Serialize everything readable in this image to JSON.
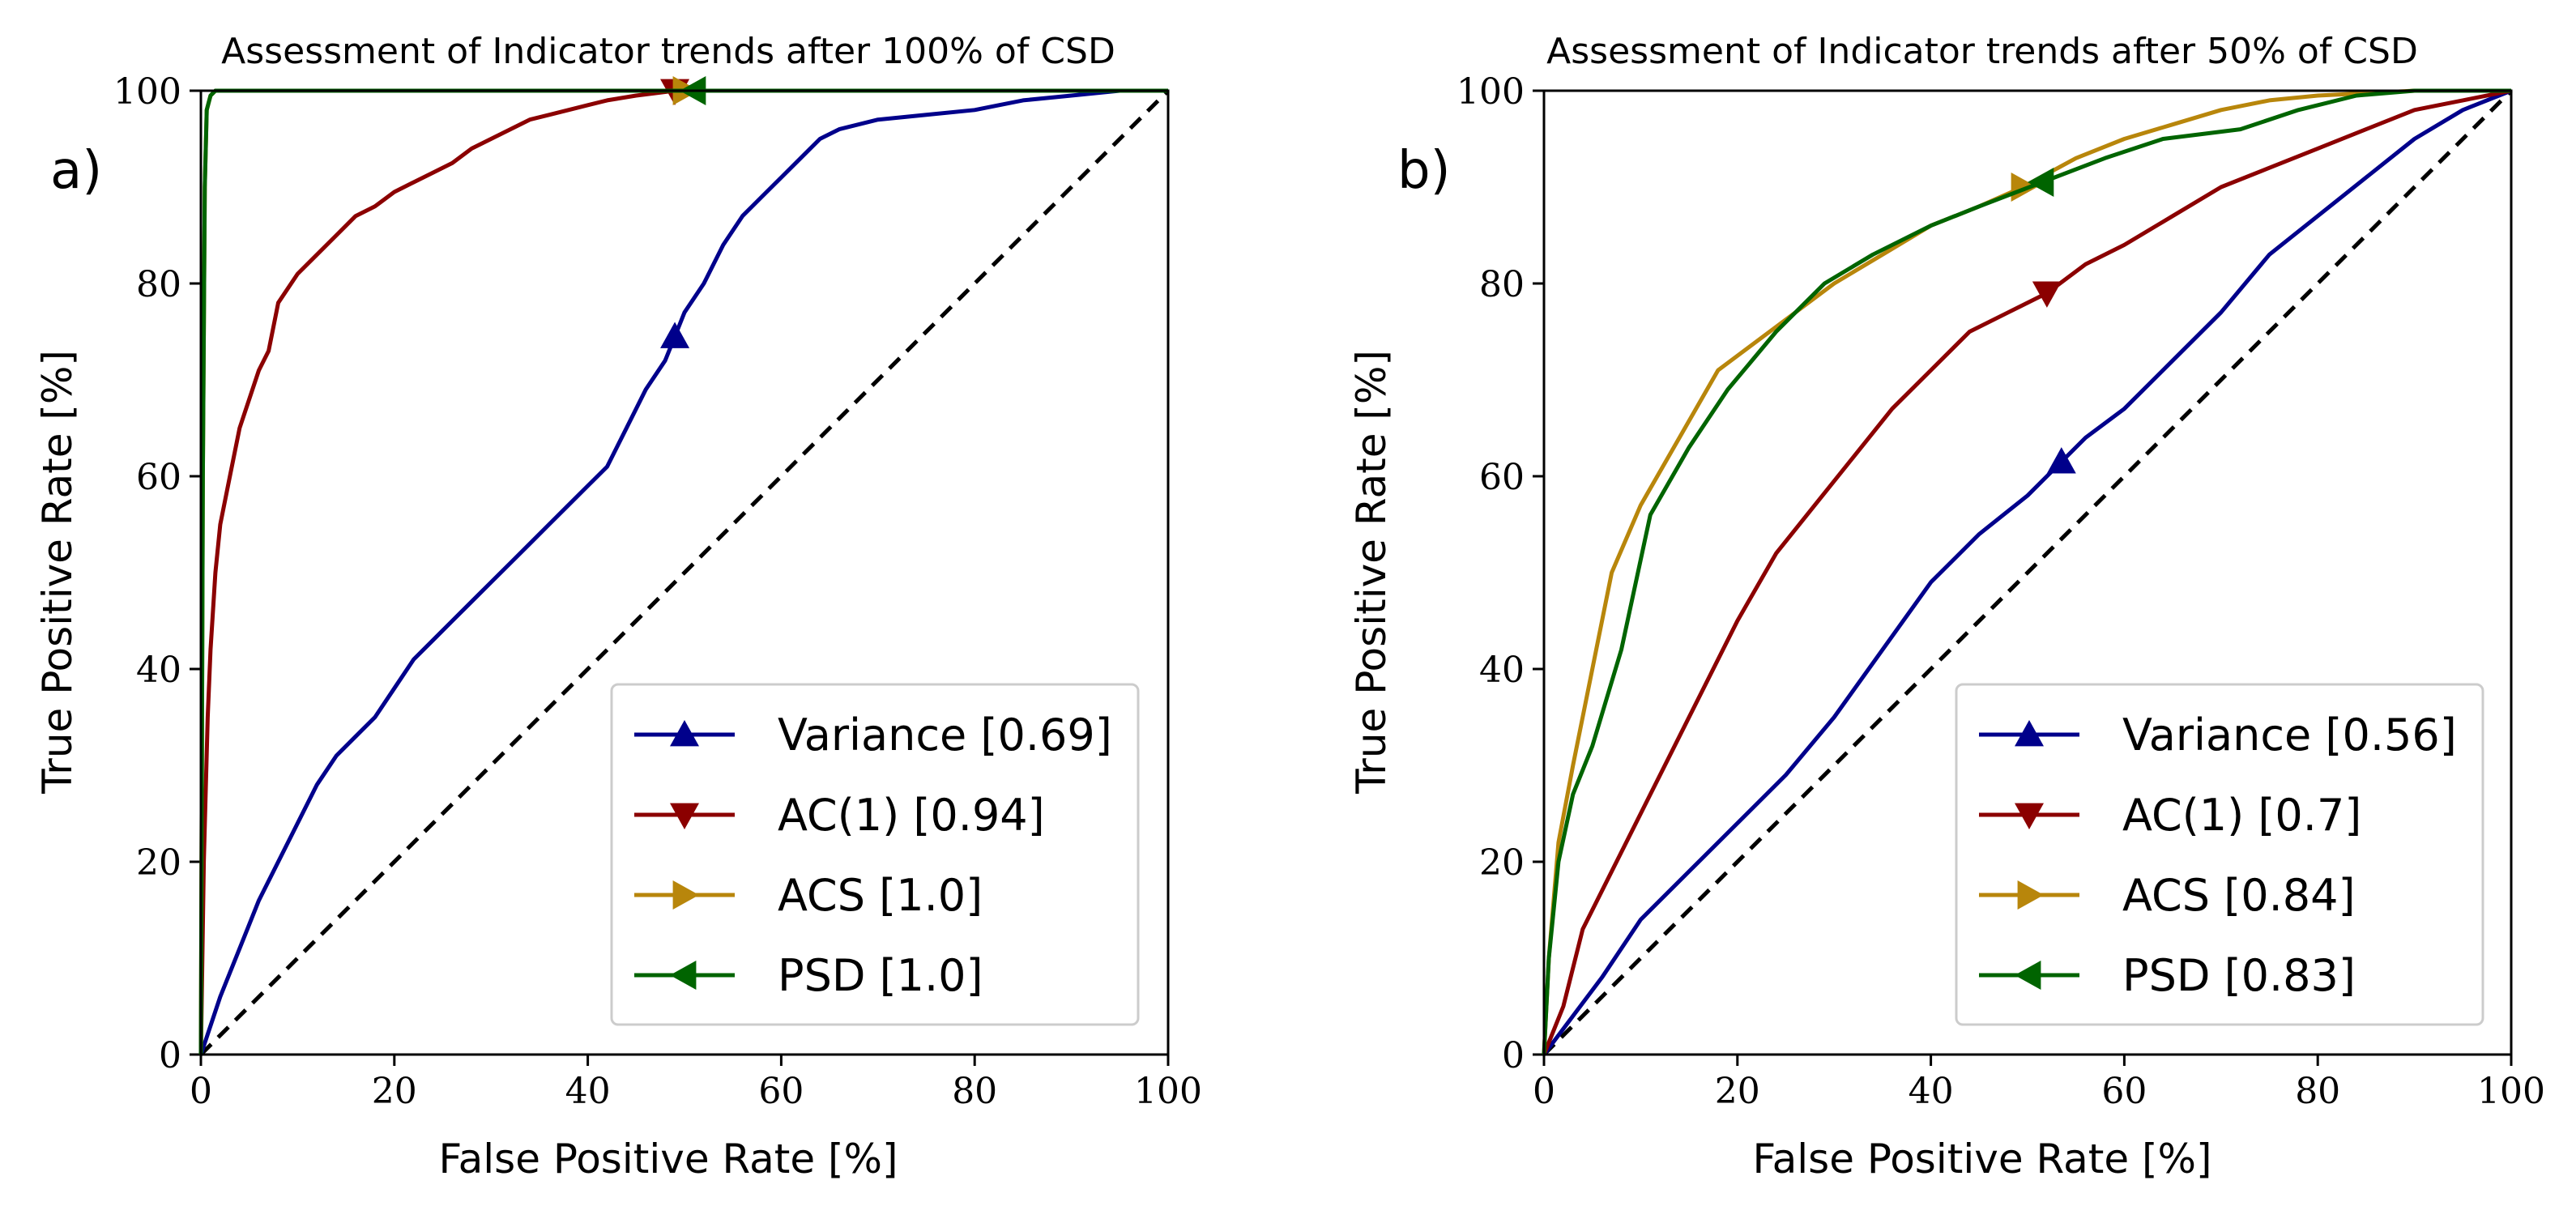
{
  "chart_data": [
    {
      "type": "line",
      "panel_label": "a)",
      "title": "Assessment of Indicator trends after 100% of CSD",
      "xlabel": "False Positive Rate [%]",
      "ylabel": "True Positive Rate [%]",
      "xlim": [
        0,
        100
      ],
      "ylim": [
        0,
        100
      ],
      "xticks": [
        "0",
        "20",
        "40",
        "60",
        "80",
        "100"
      ],
      "yticks": [
        "0",
        "20",
        "40",
        "60",
        "80",
        "100"
      ],
      "grid": false,
      "legend_position": "lower-right",
      "diagonal": "dashed",
      "series": [
        {
          "name": "Variance [0.69]",
          "color": "#00008b",
          "marker": "triangle-up",
          "marker_point": [
            49,
            74.5
          ],
          "points": [
            [
              0,
              0
            ],
            [
              2,
              6
            ],
            [
              4,
              11
            ],
            [
              6,
              16
            ],
            [
              8,
              20
            ],
            [
              10,
              24
            ],
            [
              12,
              28
            ],
            [
              14,
              31
            ],
            [
              16,
              33
            ],
            [
              18,
              35
            ],
            [
              20,
              38
            ],
            [
              22,
              41
            ],
            [
              24,
              43
            ],
            [
              26,
              45
            ],
            [
              28,
              47
            ],
            [
              30,
              49
            ],
            [
              32,
              51
            ],
            [
              34,
              53
            ],
            [
              36,
              55
            ],
            [
              38,
              57
            ],
            [
              40,
              59
            ],
            [
              42,
              61
            ],
            [
              44,
              65
            ],
            [
              46,
              69
            ],
            [
              48,
              72
            ],
            [
              49,
              74.5
            ],
            [
              50,
              77
            ],
            [
              52,
              80
            ],
            [
              54,
              84
            ],
            [
              56,
              87
            ],
            [
              58,
              89
            ],
            [
              60,
              91
            ],
            [
              62,
              93
            ],
            [
              64,
              95
            ],
            [
              66,
              96
            ],
            [
              70,
              97
            ],
            [
              75,
              97.5
            ],
            [
              80,
              98
            ],
            [
              85,
              99
            ],
            [
              90,
              99.5
            ],
            [
              95,
              100
            ],
            [
              100,
              100
            ]
          ]
        },
        {
          "name": "AC(1) [0.94]",
          "color": "#8b0000",
          "marker": "triangle-down",
          "marker_point": [
            49,
            100
          ],
          "points": [
            [
              0,
              0
            ],
            [
              0.3,
              20
            ],
            [
              0.7,
              35
            ],
            [
              1,
              42
            ],
            [
              1.5,
              50
            ],
            [
              2,
              55
            ],
            [
              3,
              60
            ],
            [
              4,
              65
            ],
            [
              5,
              68
            ],
            [
              6,
              71
            ],
            [
              7,
              73
            ],
            [
              8,
              78
            ],
            [
              10,
              81
            ],
            [
              12,
              83
            ],
            [
              14,
              85
            ],
            [
              16,
              87
            ],
            [
              18,
              88
            ],
            [
              20,
              89.5
            ],
            [
              22,
              90.5
            ],
            [
              24,
              91.5
            ],
            [
              26,
              92.5
            ],
            [
              28,
              94
            ],
            [
              30,
              95
            ],
            [
              32,
              96
            ],
            [
              34,
              97
            ],
            [
              36,
              97.5
            ],
            [
              38,
              98
            ],
            [
              40,
              98.5
            ],
            [
              42,
              99
            ],
            [
              45,
              99.5
            ],
            [
              49,
              100
            ],
            [
              55,
              100
            ],
            [
              100,
              100
            ]
          ]
        },
        {
          "name": "ACS [1.0]",
          "color": "#b8860b",
          "marker": "triangle-right",
          "marker_point": [
            50,
            100
          ],
          "points": [
            [
              0,
              0
            ],
            [
              0.2,
              60
            ],
            [
              0.4,
              90
            ],
            [
              0.6,
              98
            ],
            [
              1,
              99.5
            ],
            [
              1.5,
              100
            ],
            [
              100,
              100
            ]
          ]
        },
        {
          "name": "PSD [1.0]",
          "color": "#006400",
          "marker": "triangle-left",
          "marker_point": [
            51,
            100
          ],
          "points": [
            [
              0,
              0
            ],
            [
              0.2,
              60
            ],
            [
              0.4,
              90
            ],
            [
              0.6,
              98
            ],
            [
              1,
              99.5
            ],
            [
              1.5,
              100
            ],
            [
              100,
              100
            ]
          ]
        }
      ]
    },
    {
      "type": "line",
      "panel_label": "b)",
      "title": "Assessment of Indicator trends after 50% of CSD",
      "xlabel": "False Positive Rate [%]",
      "ylabel": "True Positive Rate [%]",
      "xlim": [
        0,
        100
      ],
      "ylim": [
        0,
        100
      ],
      "xticks": [
        "0",
        "20",
        "40",
        "60",
        "80",
        "100"
      ],
      "yticks": [
        "0",
        "20",
        "40",
        "60",
        "80",
        "100"
      ],
      "grid": false,
      "legend_position": "lower-right",
      "diagonal": "dashed",
      "series": [
        {
          "name": "Variance [0.56]",
          "color": "#00008b",
          "marker": "triangle-up",
          "marker_point": [
            53.5,
            61.5
          ],
          "points": [
            [
              0,
              0
            ],
            [
              3,
              4
            ],
            [
              6,
              8
            ],
            [
              10,
              14
            ],
            [
              15,
              19
            ],
            [
              20,
              24
            ],
            [
              25,
              29
            ],
            [
              30,
              35
            ],
            [
              35,
              42
            ],
            [
              40,
              49
            ],
            [
              45,
              54
            ],
            [
              50,
              58
            ],
            [
              53.5,
              61.5
            ],
            [
              56,
              64
            ],
            [
              60,
              67
            ],
            [
              65,
              72
            ],
            [
              70,
              77
            ],
            [
              75,
              83
            ],
            [
              80,
              87
            ],
            [
              85,
              91
            ],
            [
              90,
              95
            ],
            [
              95,
              98
            ],
            [
              100,
              100
            ]
          ]
        },
        {
          "name": "AC(1) [0.7]",
          "color": "#8b0000",
          "marker": "triangle-down",
          "marker_point": [
            52,
            79
          ],
          "points": [
            [
              0,
              0
            ],
            [
              2,
              5
            ],
            [
              4,
              13
            ],
            [
              7,
              19
            ],
            [
              10,
              25
            ],
            [
              13,
              31
            ],
            [
              16,
              37
            ],
            [
              20,
              45
            ],
            [
              24,
              52
            ],
            [
              28,
              57
            ],
            [
              32,
              62
            ],
            [
              36,
              67
            ],
            [
              40,
              71
            ],
            [
              44,
              75
            ],
            [
              48,
              77
            ],
            [
              52,
              79
            ],
            [
              56,
              82
            ],
            [
              60,
              84
            ],
            [
              65,
              87
            ],
            [
              70,
              90
            ],
            [
              75,
              92
            ],
            [
              80,
              94
            ],
            [
              85,
              96
            ],
            [
              90,
              98
            ],
            [
              95,
              99
            ],
            [
              100,
              100
            ]
          ]
        },
        {
          "name": "ACS [0.84]",
          "color": "#b8860b",
          "marker": "triangle-right",
          "marker_point": [
            49.5,
            90
          ],
          "points": [
            [
              0,
              0
            ],
            [
              0.5,
              10
            ],
            [
              1.5,
              22
            ],
            [
              3,
              30
            ],
            [
              5,
              40
            ],
            [
              7,
              50
            ],
            [
              10,
              57
            ],
            [
              14,
              64
            ],
            [
              18,
              71
            ],
            [
              22,
              74
            ],
            [
              26,
              77
            ],
            [
              30,
              80
            ],
            [
              35,
              83
            ],
            [
              40,
              86
            ],
            [
              45,
              88
            ],
            [
              49.5,
              90
            ],
            [
              55,
              93
            ],
            [
              60,
              95
            ],
            [
              65,
              96.5
            ],
            [
              70,
              98
            ],
            [
              75,
              99
            ],
            [
              80,
              99.5
            ],
            [
              90,
              100
            ],
            [
              100,
              100
            ]
          ]
        },
        {
          "name": "PSD [0.83]",
          "color": "#006400",
          "marker": "triangle-left",
          "marker_point": [
            51.5,
            90.5
          ],
          "points": [
            [
              0,
              0
            ],
            [
              0.5,
              10
            ],
            [
              1.5,
              20
            ],
            [
              3,
              27
            ],
            [
              5,
              32
            ],
            [
              8,
              42
            ],
            [
              11,
              56
            ],
            [
              15,
              63
            ],
            [
              19,
              69
            ],
            [
              24,
              75
            ],
            [
              29,
              80
            ],
            [
              34,
              83
            ],
            [
              40,
              86
            ],
            [
              45,
              88
            ],
            [
              51.5,
              90.5
            ],
            [
              58,
              93
            ],
            [
              64,
              95
            ],
            [
              72,
              96
            ],
            [
              78,
              98
            ],
            [
              84,
              99.5
            ],
            [
              90,
              100
            ],
            [
              100,
              100
            ]
          ]
        }
      ]
    }
  ]
}
